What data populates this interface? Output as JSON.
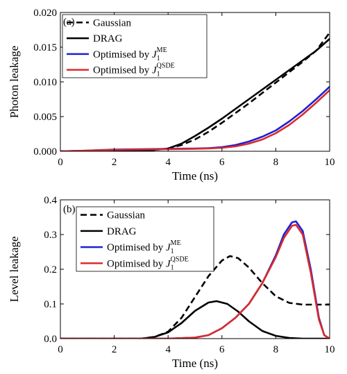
{
  "chart_data": [
    {
      "panel_label": "(a)",
      "type": "line",
      "xlabel": "Time (ns)",
      "ylabel": "Photon leakage",
      "xlim": [
        0,
        10
      ],
      "ylim": [
        0,
        0.02
      ],
      "xticks": [
        0,
        2,
        4,
        6,
        8,
        10
      ],
      "xtick_labels": [
        "0",
        "2",
        "4",
        "6",
        "8",
        "10"
      ],
      "yticks": [
        0,
        0.005,
        0.01,
        0.015,
        0.02
      ],
      "ytick_labels": [
        "0.000",
        "0.005",
        "0.010",
        "0.015",
        "0.020"
      ],
      "grid": false,
      "legend_position": "top-left",
      "series": [
        {
          "name": "Gaussian",
          "legend_text": "Gaussian",
          "color": "#000000",
          "dash": true,
          "x": [
            0,
            1,
            2,
            3,
            3.5,
            4,
            4.5,
            5,
            5.5,
            6,
            6.5,
            7,
            7.5,
            8,
            8.5,
            9,
            9.5,
            10
          ],
          "y": [
            0,
            5e-05,
            0.0001,
            0.00015,
            0.0002,
            0.0004,
            0.0009,
            0.0017,
            0.0028,
            0.0041,
            0.0055,
            0.0069,
            0.0084,
            0.0099,
            0.0114,
            0.0129,
            0.0145,
            0.0171
          ]
        },
        {
          "name": "DRAG",
          "legend_text": "DRAG",
          "color": "#000000",
          "dash": false,
          "x": [
            0,
            1,
            2,
            3,
            3.5,
            4,
            4.5,
            5,
            5.5,
            6,
            6.5,
            7,
            7.5,
            8,
            8.5,
            9,
            9.5,
            10
          ],
          "y": [
            0,
            5e-05,
            0.0001,
            0.00015,
            0.0002,
            0.0004,
            0.0011,
            0.0022,
            0.0034,
            0.0047,
            0.0061,
            0.0075,
            0.0089,
            0.0103,
            0.0117,
            0.0131,
            0.0145,
            0.0162
          ]
        },
        {
          "name": "Optimised by J1 ME",
          "legend_text": "Optimised by",
          "legend_sym": "J",
          "legend_sub": "1",
          "legend_sup": "ME",
          "color": "#1f1fd6",
          "dash": false,
          "x": [
            0,
            1,
            2,
            3,
            4,
            5,
            5.5,
            6,
            6.5,
            7,
            7.5,
            8,
            8.5,
            9,
            9.5,
            10
          ],
          "y": [
            0,
            0.0001,
            0.00025,
            0.0003,
            0.00035,
            0.0004,
            0.00045,
            0.0006,
            0.0009,
            0.0014,
            0.0021,
            0.003,
            0.0043,
            0.0058,
            0.0075,
            0.0093
          ]
        },
        {
          "name": "Optimised by J1 QSDE",
          "legend_text": "Optimised by",
          "legend_sym": "J",
          "legend_sub": "1",
          "legend_sup": "QSDE",
          "color": "#d92b2b",
          "dash": false,
          "x": [
            0,
            1,
            2,
            3,
            4,
            5,
            5.5,
            6,
            6.5,
            7,
            7.5,
            8,
            8.5,
            9,
            9.5,
            10
          ],
          "y": [
            0,
            0.0001,
            0.0002,
            0.00025,
            0.0003,
            0.00035,
            0.0004,
            0.0005,
            0.0007,
            0.0011,
            0.0017,
            0.0026,
            0.0038,
            0.0053,
            0.007,
            0.0088
          ]
        }
      ]
    },
    {
      "panel_label": "(b)",
      "type": "line",
      "xlabel": "Time (ns)",
      "ylabel": "Level leakage",
      "xlim": [
        0,
        10
      ],
      "ylim": [
        0,
        0.4
      ],
      "xticks": [
        0,
        2,
        4,
        6,
        8,
        10
      ],
      "xtick_labels": [
        "0",
        "2",
        "4",
        "6",
        "8",
        "10"
      ],
      "yticks": [
        0,
        0.1,
        0.2,
        0.3,
        0.4
      ],
      "ytick_labels": [
        "0.0",
        "0.1",
        "0.2",
        "0.3",
        "0.4"
      ],
      "grid": false,
      "legend_position": "top-left",
      "series": [
        {
          "name": "Gaussian",
          "legend_text": "Gaussian",
          "color": "#000000",
          "dash": true,
          "x": [
            0,
            3,
            3.5,
            4,
            4.5,
            5,
            5.5,
            6,
            6.3,
            6.6,
            7,
            7.5,
            8,
            8.5,
            9,
            9.5,
            10
          ],
          "y": [
            0,
            0,
            0.005,
            0.02,
            0.06,
            0.12,
            0.18,
            0.225,
            0.238,
            0.232,
            0.205,
            0.16,
            0.122,
            0.103,
            0.098,
            0.098,
            0.098
          ]
        },
        {
          "name": "DRAG",
          "legend_text": "DRAG",
          "color": "#000000",
          "dash": false,
          "x": [
            0,
            3,
            3.5,
            4,
            4.5,
            5,
            5.5,
            5.8,
            6.2,
            6.6,
            7,
            7.5,
            8,
            8.5,
            9,
            9.5,
            10
          ],
          "y": [
            0,
            0,
            0.005,
            0.018,
            0.045,
            0.08,
            0.104,
            0.108,
            0.1,
            0.078,
            0.05,
            0.022,
            0.008,
            0.002,
            0,
            0,
            0
          ]
        },
        {
          "name": "Optimised by J1 ME",
          "legend_text": "Optimised by",
          "legend_sym": "J",
          "legend_sub": "1",
          "legend_sup": "ME",
          "color": "#1f1fd6",
          "dash": false,
          "x": [
            0,
            4,
            5,
            5.5,
            6,
            6.5,
            7,
            7.5,
            8,
            8.3,
            8.6,
            8.75,
            9,
            9.3,
            9.6,
            9.8,
            10
          ],
          "y": [
            0,
            0,
            0.003,
            0.01,
            0.03,
            0.06,
            0.1,
            0.16,
            0.24,
            0.3,
            0.335,
            0.338,
            0.31,
            0.2,
            0.06,
            0.01,
            0
          ]
        },
        {
          "name": "Optimised by J1 QSDE",
          "legend_text": "Optimised by",
          "legend_sym": "J",
          "legend_sub": "1",
          "legend_sup": "QSDE",
          "color": "#d92b2b",
          "dash": false,
          "x": [
            0,
            4,
            5,
            5.5,
            6,
            6.5,
            7,
            7.5,
            8,
            8.3,
            8.6,
            8.75,
            9,
            9.3,
            9.6,
            9.8,
            10
          ],
          "y": [
            0,
            0,
            0.003,
            0.01,
            0.03,
            0.06,
            0.1,
            0.16,
            0.235,
            0.29,
            0.325,
            0.328,
            0.3,
            0.19,
            0.055,
            0.01,
            0
          ]
        }
      ]
    }
  ]
}
